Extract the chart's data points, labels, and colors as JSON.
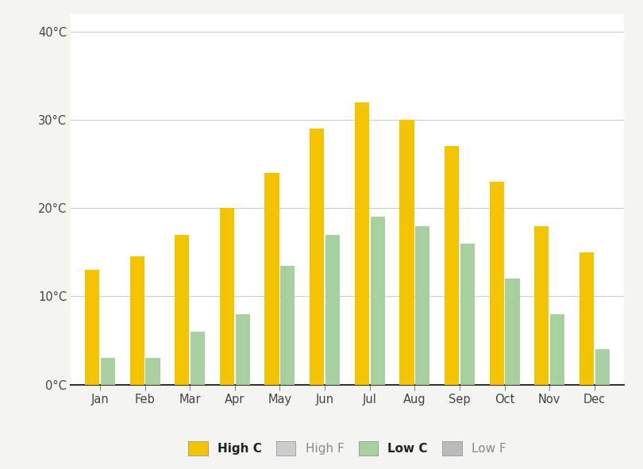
{
  "months": [
    "Jan",
    "Feb",
    "Mar",
    "Apr",
    "May",
    "Jun",
    "Jul",
    "Aug",
    "Sep",
    "Oct",
    "Nov",
    "Dec"
  ],
  "high_c": [
    13,
    14.5,
    17,
    20,
    24,
    29,
    32,
    30,
    27,
    23,
    18,
    15
  ],
  "low_c": [
    3,
    3,
    6,
    8,
    13.5,
    17,
    19,
    18,
    16,
    12,
    8,
    4
  ],
  "color_high_c": "#F5C400",
  "color_low_c": "#A8CFA0",
  "color_high_f": "#CCCCCC",
  "color_low_f": "#BBBBBB",
  "yticks": [
    0,
    10,
    20,
    30,
    40
  ],
  "ytick_labels": [
    "0°C",
    "10°C",
    "20°C",
    "30°C",
    "40°C"
  ],
  "ylim": [
    0,
    42
  ],
  "background_color": "#F4F4F0",
  "plot_bg_color": "#FFFFFF",
  "grid_color": "#CCCCCC",
  "legend_labels": [
    "High C",
    "High F",
    "Low C",
    "Low F"
  ],
  "bar_width": 0.32,
  "bar_gap": 0.03
}
